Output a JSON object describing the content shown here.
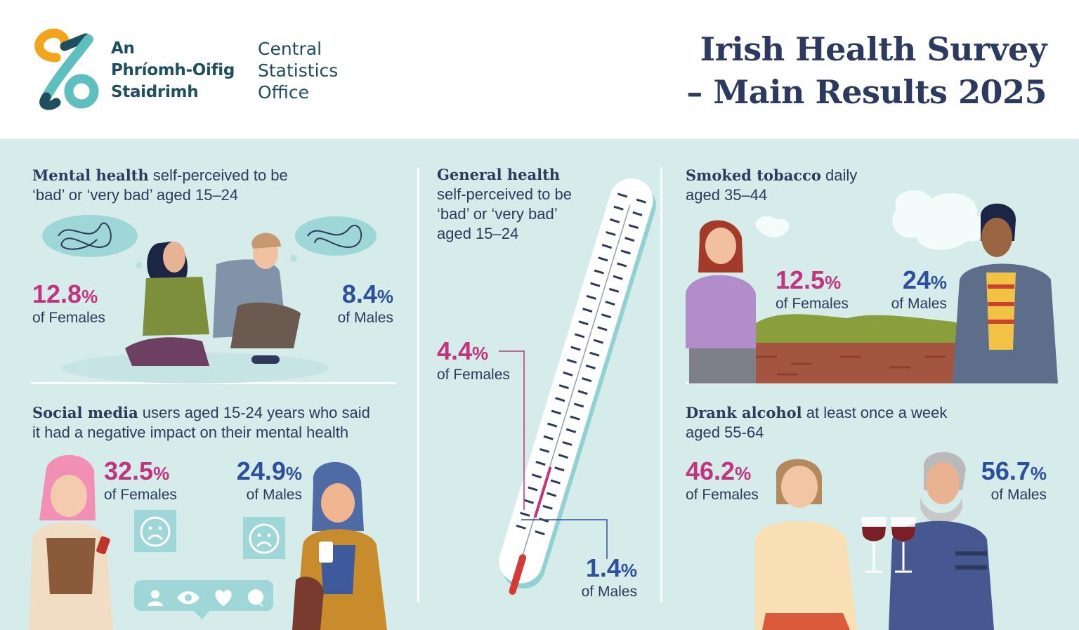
{
  "logo": {
    "irish_lines": [
      "An",
      "Phríomh-Oifig",
      "Staidrimh"
    ],
    "english_lines": [
      "Central",
      "Statistics",
      "Office"
    ]
  },
  "title": {
    "line1": "Irish Health Survey",
    "line2": "– Main Results 2025"
  },
  "colors": {
    "panel": "#d6eceb",
    "female": "#c2347e",
    "male": "#2e4f9e",
    "navy": "#2d3a5c",
    "white": "#ffffff"
  },
  "mental_health": {
    "title_bold": "Mental health",
    "title_rest": " self-perceived to be",
    "title_line2": "‘bad’ or ‘very bad’ aged 15–24",
    "female": {
      "value": "12.8",
      "sym": "%",
      "label": "of Females"
    },
    "male": {
      "value": "8.4",
      "sym": "%",
      "label": "of Males"
    }
  },
  "social_media": {
    "title_bold": "Social media",
    "title_rest": " users aged 15-24 years who said",
    "title_line2": "it had a negative impact on their mental health",
    "female": {
      "value": "32.5",
      "sym": "%",
      "label": "of Females"
    },
    "male": {
      "value": "24.9",
      "sym": "%",
      "label": "of Males"
    },
    "icons": [
      "user-icon",
      "eye-icon",
      "heart-icon",
      "comment-icon",
      "sad-face-icon"
    ]
  },
  "general_health": {
    "title_bold": "General health",
    "lines": [
      "self-perceived to be",
      "‘bad’ or ‘very bad’",
      "aged 15–24"
    ],
    "female": {
      "value": "4.4",
      "sym": "%",
      "label": "of Females"
    },
    "male": {
      "value": "1.4",
      "sym": "%",
      "label": "of Males"
    },
    "icons": [
      "thermometer-icon"
    ]
  },
  "tobacco": {
    "title_bold": "Smoked tobacco",
    "title_rest": " daily",
    "title_line2": "aged 35–44",
    "female": {
      "value": "12.5",
      "sym": "%",
      "label": "of Females"
    },
    "male": {
      "value": "24",
      "sym": "%",
      "label": "of Males"
    }
  },
  "alcohol": {
    "title_bold": "Drank alcohol",
    "title_rest": " at least once a week",
    "title_line2": "aged 55-64",
    "female": {
      "value": "46.2",
      "sym": "%",
      "label": "of Females"
    },
    "male": {
      "value": "56.7",
      "sym": "%",
      "label": "of Males"
    },
    "icons": [
      "wine-glass-icon"
    ]
  }
}
